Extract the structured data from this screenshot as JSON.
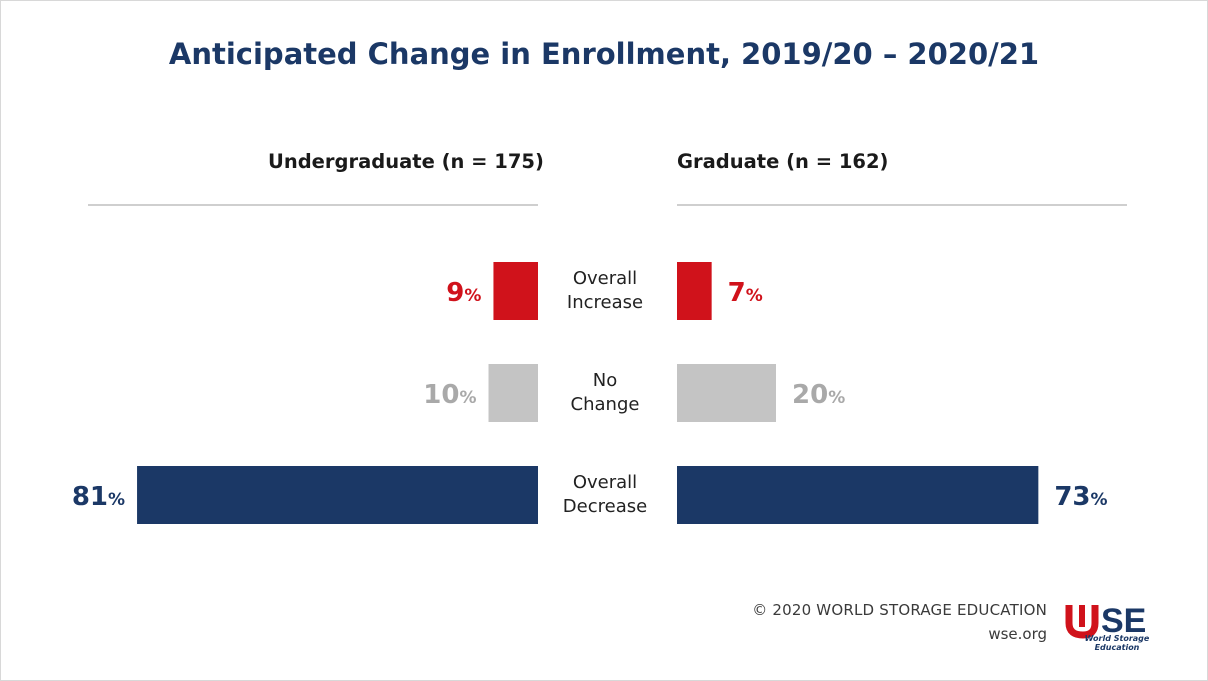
{
  "title": "Anticipated Change in Enrollment, 2019/20 – 2020/21",
  "colors": {
    "increase": "#d0121b",
    "no_change": "#c4c4c4",
    "decrease": "#1b3866",
    "title": "#1b3866"
  },
  "chart_data": {
    "type": "bar",
    "orientation": "horizontal-butterfly",
    "title": "Anticipated Change in Enrollment, 2019/20 – 2020/21",
    "categories": [
      "Overall\nIncrease",
      "No\nChange",
      "Overall\nDecrease"
    ],
    "series": [
      {
        "name": "Undergraduate (n = 175)",
        "values": [
          9,
          10,
          81
        ]
      },
      {
        "name": "Graduate (n = 162)",
        "values": [
          7,
          20,
          73
        ]
      }
    ],
    "value_suffix": "%",
    "xlim": [
      0,
      100
    ],
    "grid": false
  },
  "footer": {
    "copyright": "© 2020 WORLD STORAGE EDUCATION",
    "url": "wse.org"
  },
  "logo": {
    "text": "WSE",
    "subtitle": "World Storage Education"
  }
}
